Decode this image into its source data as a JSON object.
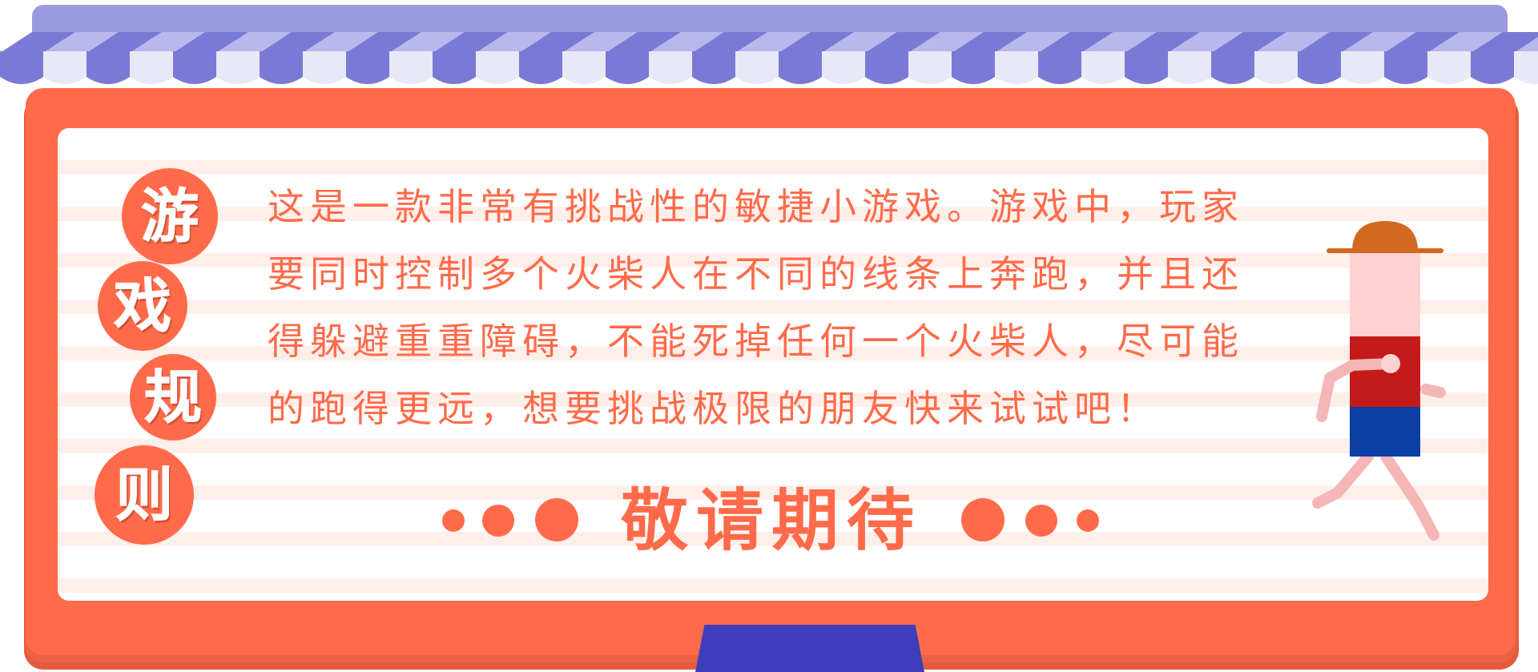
{
  "title": {
    "chars": [
      "游",
      "戏",
      "规",
      "则"
    ]
  },
  "rules": {
    "lines": [
      "这是一款非常有挑战性的敏捷小游戏。游戏中，玩家",
      "要同时控制多个火柴人在不同的线条上奔跑，并且还",
      "得躲避重重障碍，不能死掉任何一个火柴人，尽可能",
      "的跑得更远，想要挑战极限的朋友快来试试吧！"
    ]
  },
  "coming_soon": {
    "label": "敬请期待"
  },
  "colors": {
    "frame": "#ff6b4a",
    "awning_dark": "#7a7ad6",
    "awning_light": "#e8e8f7",
    "awning_bar": "#9b9be0",
    "stand": "#3d3dbd",
    "board_stripe": "#ffefea",
    "figure_hat": "#d2691e",
    "figure_skin": "#ffd1d1",
    "figure_shirt": "#c41a1a",
    "figure_pants": "#0d3ea3",
    "figure_limbs": "#f5b6b6"
  },
  "icons": {
    "figure": "stickman-runner-icon",
    "awning": "striped-awning-icon"
  }
}
